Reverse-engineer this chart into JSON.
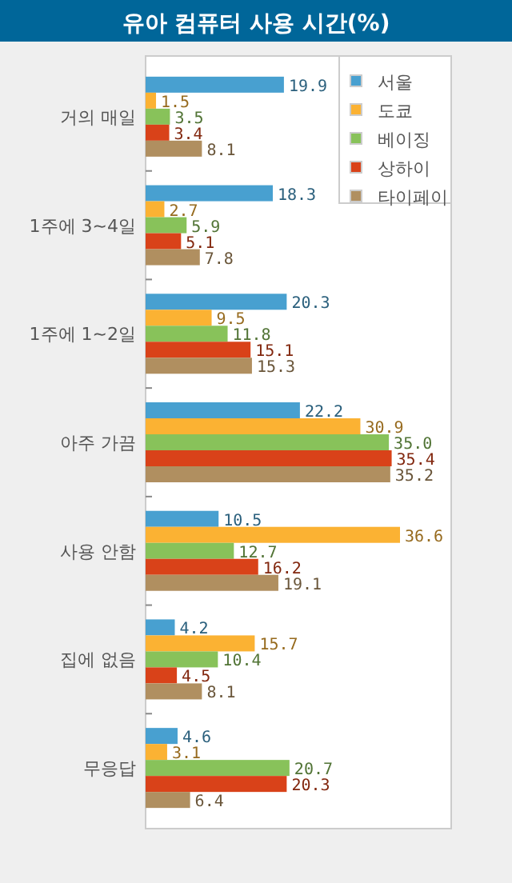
{
  "chart_data": {
    "type": "bar",
    "orientation": "horizontal",
    "title": "유아 컴퓨터 사용 시간(%)",
    "categories": [
      "거의 매일",
      "1주에 3~4일",
      "1주에 1~2일",
      "아주 가끔",
      "사용 안함",
      "집에 없음",
      "무응답"
    ],
    "series": [
      {
        "name": "서울",
        "color": "#48a0d0",
        "values": [
          19.9,
          18.3,
          20.3,
          22.2,
          10.5,
          4.2,
          4.6
        ],
        "value_labels": [
          "19.9",
          "18.3",
          "20.3",
          "22.2",
          "10.5",
          "4.2",
          "4.6"
        ]
      },
      {
        "name": "도쿄",
        "color": "#fbb233",
        "values": [
          1.5,
          2.7,
          9.5,
          30.9,
          36.6,
          15.7,
          3.1
        ],
        "value_labels": [
          "1.5",
          "2.7",
          "9.5",
          "30.9",
          "36.6",
          "15.7",
          "3.1"
        ]
      },
      {
        "name": "베이징",
        "color": "#88c25a",
        "values": [
          3.5,
          5.9,
          11.8,
          35.0,
          12.7,
          10.4,
          20.7
        ],
        "value_labels": [
          "3.5",
          "5.9",
          "11.8",
          "35.0",
          "12.7",
          "10.4",
          "20.7"
        ]
      },
      {
        "name": "상하이",
        "color": "#d94219",
        "values": [
          3.4,
          5.1,
          15.1,
          35.4,
          16.2,
          4.5,
          20.3
        ],
        "value_labels": [
          "3.4",
          "5.1",
          "15.1",
          "35.4",
          "16.2",
          "4.5",
          "20.3"
        ]
      },
      {
        "name": "타이페이",
        "color": "#b08f60",
        "values": [
          8.1,
          7.8,
          15.3,
          35.2,
          19.1,
          8.1,
          6.4
        ],
        "value_labels": [
          "8.1",
          "7.8",
          "15.3",
          "35.2",
          "19.1",
          "8.1",
          "6.4"
        ]
      }
    ],
    "legend": "top right"
  }
}
